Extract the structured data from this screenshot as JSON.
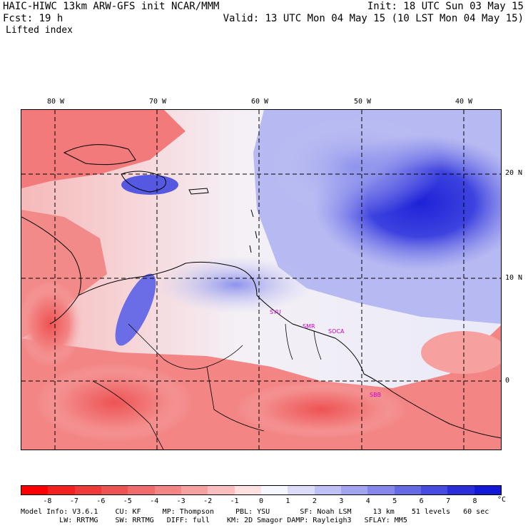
{
  "header": {
    "line1_left": "HAIC-HIWC 13km ARW-GFS init   NCAR/MMM",
    "line1_right": "Init: 18 UTC Sun 03 May 15",
    "line2_left": "Fcst:   19 h",
    "line2_right": "Valid: 13 UTC Mon 04 May 15 (10 LST Mon 04 May 15)",
    "field_name": "Lifted index"
  },
  "map": {
    "lon_ticks": [
      "80 W",
      "70 W",
      "60 W",
      "50 W",
      "40 W"
    ],
    "lat_ticks": [
      "20 N",
      "10 N",
      "0"
    ],
    "stations": [
      "SYU",
      "SMR",
      "SOCA",
      "SBB"
    ]
  },
  "colorbar": {
    "labels": [
      "-8",
      "-7",
      "-6",
      "-5",
      "-4",
      "-3",
      "-2",
      "-1",
      "0",
      "1",
      "2",
      "3",
      "4",
      "5",
      "6",
      "7",
      "8"
    ],
    "unit": "°C",
    "colors": [
      "#ff0000",
      "#f32020",
      "#ef3a3a",
      "#ee5353",
      "#f06c6c",
      "#f38585",
      "#f6a0a0",
      "#fabebe",
      "#fde0e0",
      "#f7f7ff",
      "#dcdcf8",
      "#bfc0f5",
      "#a2a4f0",
      "#8588ea",
      "#6669e4",
      "#474be0",
      "#2a2ed9",
      "#1318d6"
    ]
  },
  "footer": {
    "line1": "Model Info: V3.6.1    CU: KF     MP: Thompson     PBL: YSU       SF: Noah LSM     13 km    51 levels   60 sec",
    "line2": "         LW: RRTMG    SW: RRTMG   DIFF: full    KM: 2D Smagor DAMP: Rayleigh3   SFLAY: MM5"
  }
}
